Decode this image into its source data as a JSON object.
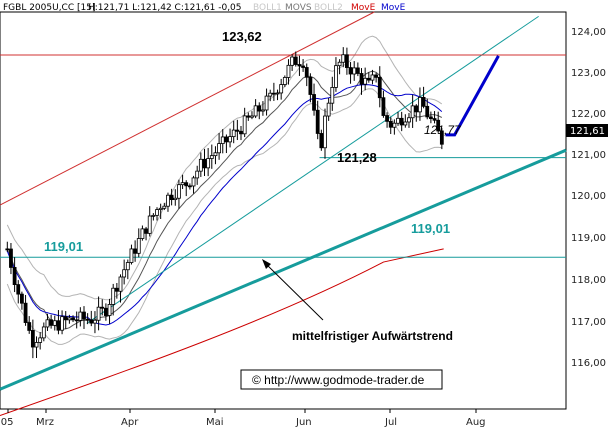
{
  "header": {
    "symbol": "FGBL 2005U,CC [15]",
    "ohlc": "H:121,71 L:121,42 C:121,61 -0,05",
    "legend": [
      {
        "label": "BOLL1",
        "color": "#c8c8c8"
      },
      {
        "label": "MOVS",
        "color": "#777777"
      },
      {
        "label": "BOLL2",
        "color": "#c8c8c8"
      },
      {
        "label": "MovE",
        "color": "#d00000"
      },
      {
        "label": "MovE",
        "color": "#0000cc"
      }
    ]
  },
  "colors": {
    "candles": "#000000",
    "boll": "#b4b4b4",
    "movs": "#555555",
    "move_red": "#cc0000",
    "move_blue": "#0000cc",
    "trend_teal": "#169c9c",
    "hline_red": "#d03030",
    "hline_teal": "#169c9c",
    "price_box": "#000000"
  },
  "chart_data": {
    "type": "candlestick",
    "y_axis": {
      "ticks": [
        "124,00",
        "123,00",
        "122,00",
        "121,00",
        "120,00",
        "119,00",
        "118,00",
        "117,00",
        "116,00"
      ],
      "range": [
        115.55,
        124.6
      ]
    },
    "x_axis": {
      "ticks": [
        "'05",
        "Mrz",
        "Apr",
        "Mai",
        "Jun",
        "Jul",
        "Aug"
      ]
    },
    "x_range": [
      0,
      620
    ],
    "last_price": "121,61",
    "levels": [
      {
        "label": "123,62",
        "value": 123.62,
        "line": true
      },
      {
        "label": "121,28",
        "value": 121.28,
        "line": true
      },
      {
        "label": "121,77",
        "value": 121.77,
        "line": false
      },
      {
        "label": "119,01",
        "value": 119.01,
        "line": true
      },
      {
        "label": "119,01",
        "value": 119.01,
        "line": false
      }
    ],
    "trend_label": "mittelfristiger Aufwärtstrend",
    "copyright": "© http://www.godmode-trader.de"
  }
}
